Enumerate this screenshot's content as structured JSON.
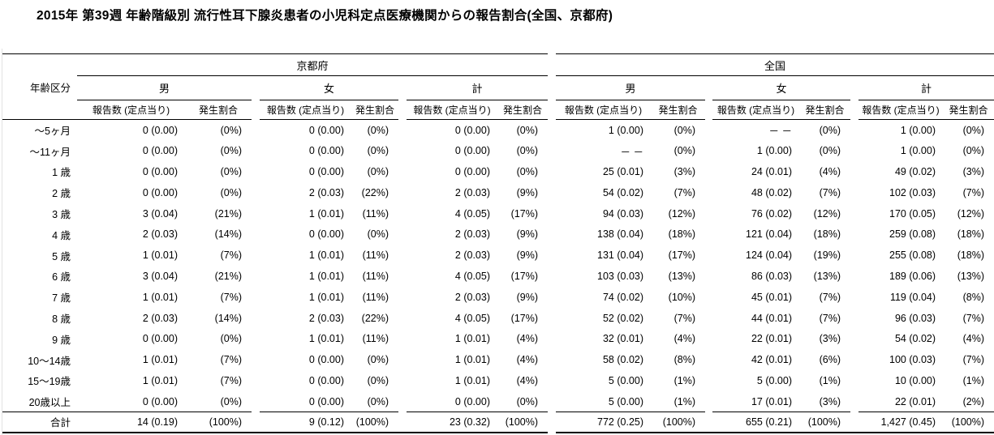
{
  "title": "2015年 第39週 年齢階級別 流行性耳下腺炎患者の小児科定点医療機関からの報告割合(全国、京都府)",
  "table": {
    "age_header": "年齢区分",
    "sections": [
      {
        "label": "京都府"
      },
      {
        "label": "全国"
      }
    ],
    "sex_headers": [
      "男",
      "女",
      "計"
    ],
    "sub_headers": [
      "報告数 (定点当り)",
      "発生割合"
    ],
    "rows": [
      {
        "age": "～5ヶ月",
        "values": [
          "0 (0.00)",
          "(0%)",
          "0 (0.00)",
          "(0%)",
          "0 (0.00)",
          "(0%)",
          "1 (0.00)",
          "(0%)",
          "－ －",
          "(0%)",
          "1 (0.00)",
          "(0%)"
        ]
      },
      {
        "age": "～11ヶ月",
        "values": [
          "0 (0.00)",
          "(0%)",
          "0 (0.00)",
          "(0%)",
          "0 (0.00)",
          "(0%)",
          "－ －",
          "(0%)",
          "1 (0.00)",
          "(0%)",
          "1 (0.00)",
          "(0%)"
        ]
      },
      {
        "age": "1 歳",
        "values": [
          "0 (0.00)",
          "(0%)",
          "0 (0.00)",
          "(0%)",
          "0 (0.00)",
          "(0%)",
          "25 (0.01)",
          "(3%)",
          "24 (0.01)",
          "(4%)",
          "49 (0.02)",
          "(3%)"
        ]
      },
      {
        "age": "2 歳",
        "values": [
          "0 (0.00)",
          "(0%)",
          "2 (0.03)",
          "(22%)",
          "2 (0.03)",
          "(9%)",
          "54 (0.02)",
          "(7%)",
          "48 (0.02)",
          "(7%)",
          "102 (0.03)",
          "(7%)"
        ]
      },
      {
        "age": "3 歳",
        "values": [
          "3 (0.04)",
          "(21%)",
          "1 (0.01)",
          "(11%)",
          "4 (0.05)",
          "(17%)",
          "94 (0.03)",
          "(12%)",
          "76 (0.02)",
          "(12%)",
          "170 (0.05)",
          "(12%)"
        ]
      },
      {
        "age": "4 歳",
        "values": [
          "2 (0.03)",
          "(14%)",
          "0 (0.00)",
          "(0%)",
          "2 (0.03)",
          "(9%)",
          "138 (0.04)",
          "(18%)",
          "121 (0.04)",
          "(18%)",
          "259 (0.08)",
          "(18%)"
        ]
      },
      {
        "age": "5 歳",
        "values": [
          "1 (0.01)",
          "(7%)",
          "1 (0.01)",
          "(11%)",
          "2 (0.03)",
          "(9%)",
          "131 (0.04)",
          "(17%)",
          "124 (0.04)",
          "(19%)",
          "255 (0.08)",
          "(18%)"
        ]
      },
      {
        "age": "6 歳",
        "values": [
          "3 (0.04)",
          "(21%)",
          "1 (0.01)",
          "(11%)",
          "4 (0.05)",
          "(17%)",
          "103 (0.03)",
          "(13%)",
          "86 (0.03)",
          "(13%)",
          "189 (0.06)",
          "(13%)"
        ]
      },
      {
        "age": "7 歳",
        "values": [
          "1 (0.01)",
          "(7%)",
          "1 (0.01)",
          "(11%)",
          "2 (0.03)",
          "(9%)",
          "74 (0.02)",
          "(10%)",
          "45 (0.01)",
          "(7%)",
          "119 (0.04)",
          "(8%)"
        ]
      },
      {
        "age": "8 歳",
        "values": [
          "2 (0.03)",
          "(14%)",
          "2 (0.03)",
          "(22%)",
          "4 (0.05)",
          "(17%)",
          "52 (0.02)",
          "(7%)",
          "44 (0.01)",
          "(7%)",
          "96 (0.03)",
          "(7%)"
        ]
      },
      {
        "age": "9 歳",
        "values": [
          "0 (0.00)",
          "(0%)",
          "1 (0.01)",
          "(11%)",
          "1 (0.01)",
          "(4%)",
          "32 (0.01)",
          "(4%)",
          "22 (0.01)",
          "(3%)",
          "54 (0.02)",
          "(4%)"
        ]
      },
      {
        "age": "10～14歳",
        "values": [
          "1 (0.01)",
          "(7%)",
          "0 (0.00)",
          "(0%)",
          "1 (0.01)",
          "(4%)",
          "58 (0.02)",
          "(8%)",
          "42 (0.01)",
          "(6%)",
          "100 (0.03)",
          "(7%)"
        ]
      },
      {
        "age": "15～19歳",
        "values": [
          "1 (0.01)",
          "(7%)",
          "0 (0.00)",
          "(0%)",
          "1 (0.01)",
          "(4%)",
          "5 (0.00)",
          "(1%)",
          "5 (0.00)",
          "(1%)",
          "10 (0.00)",
          "(1%)"
        ]
      },
      {
        "age": "20歳以上",
        "values": [
          "0 (0.00)",
          "(0%)",
          "0 (0.00)",
          "(0%)",
          "0 (0.00)",
          "(0%)",
          "5 (0.00)",
          "(1%)",
          "17 (0.01)",
          "(3%)",
          "22 (0.01)",
          "(2%)"
        ]
      }
    ],
    "total_row": {
      "age": "合計",
      "values": [
        "14 (0.19)",
        "(100%)",
        "9 (0.12)",
        "(100%)",
        "23 (0.32)",
        "(100%)",
        "772 (0.25)",
        "(100%)",
        "655 (0.21)",
        "(100%)",
        "1,427 (0.45)",
        "(100%)"
      ]
    }
  }
}
